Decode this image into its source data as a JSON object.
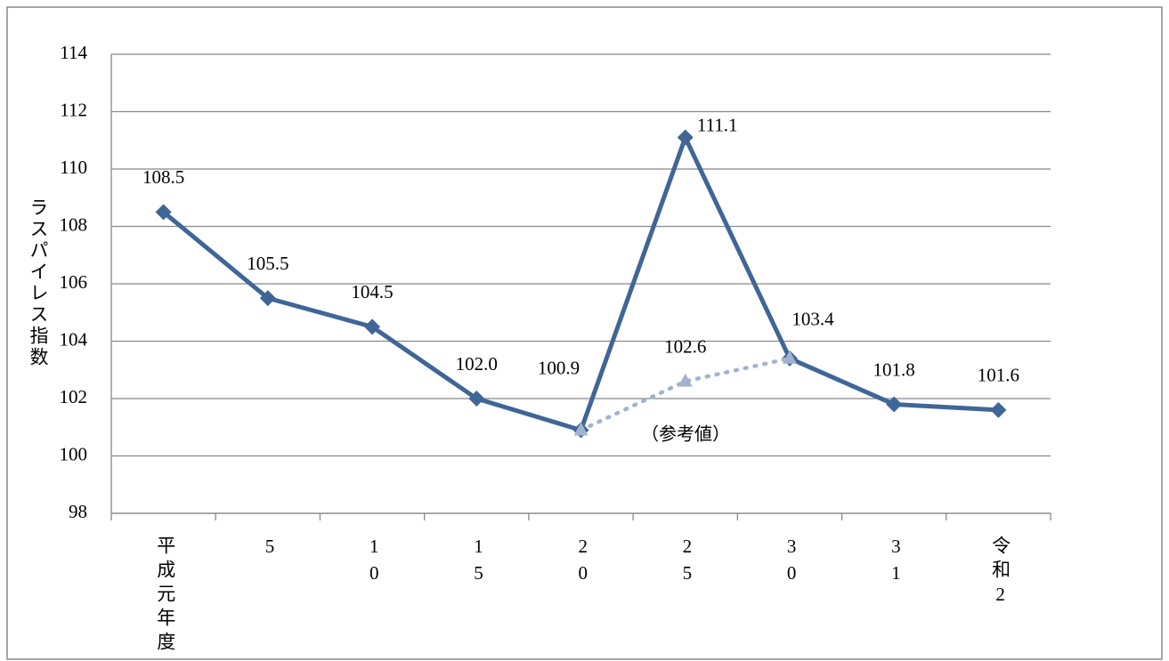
{
  "chart_data": {
    "type": "line",
    "y_axis_label": "ラスパイレス指数",
    "categories": [
      "平成元年度",
      "5",
      "10",
      "15",
      "20",
      "25",
      "30",
      "31",
      "令和2"
    ],
    "series": [
      {
        "color": "#3f6696",
        "style": "solid",
        "marker": "diamond",
        "values": [
          108.5,
          105.5,
          104.5,
          102.0,
          100.9,
          111.1,
          103.4,
          101.8,
          101.6
        ],
        "value_labels": [
          "108.5",
          "105.5",
          "104.5",
          "102.0",
          "100.9",
          "111.1",
          "103.4",
          "101.8",
          "101.6"
        ]
      },
      {
        "color": "#a3b3cf",
        "style": "dotted",
        "marker": "triangle",
        "values": [
          null,
          null,
          null,
          null,
          100.9,
          102.6,
          103.4,
          null,
          null
        ],
        "value_labels": [
          null,
          null,
          null,
          null,
          null,
          "102.6",
          null,
          null,
          null
        ]
      }
    ],
    "annotations": [
      "（参考値）"
    ],
    "ylim": [
      98,
      114
    ],
    "yticks": [
      98,
      100,
      102,
      104,
      106,
      108,
      110,
      112,
      114
    ],
    "grid": true
  }
}
